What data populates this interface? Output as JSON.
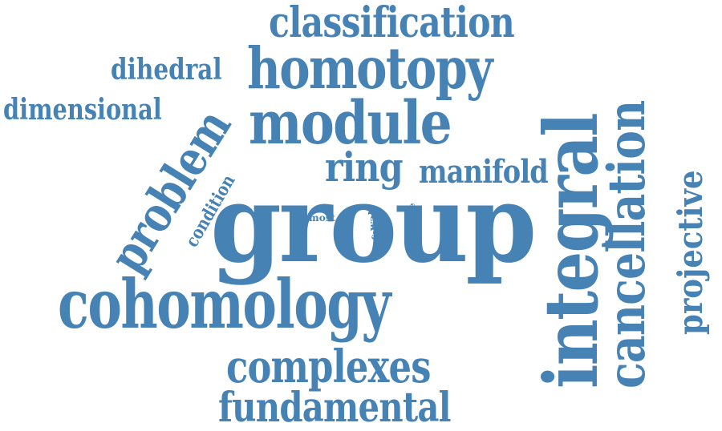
{
  "cloud": {
    "color": "#4682b4",
    "words": [
      "group",
      "cohomology",
      "integral",
      "homotopy",
      "module",
      "classification",
      "cancellation",
      "complexes",
      "fundamental",
      "problem",
      "projective",
      "ring",
      "manifold",
      "dimensional",
      "dihedral",
      "condition",
      "most",
      "wall",
      "cell",
      "case"
    ]
  }
}
